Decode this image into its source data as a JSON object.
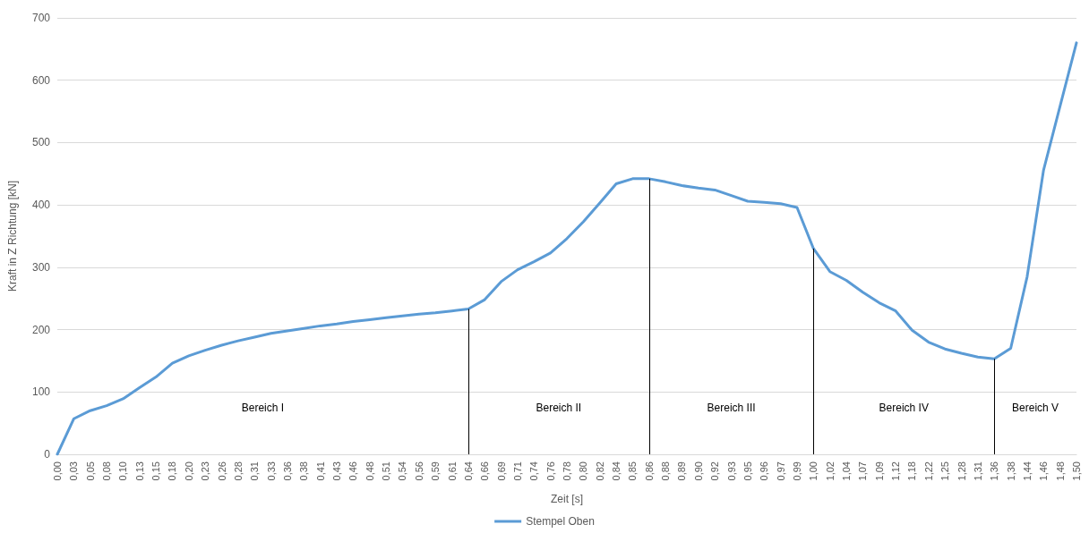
{
  "chart_data": {
    "type": "line",
    "xlabel": "Zeit [s]",
    "ylabel": "Kraft in Z Richtung [kN]",
    "categories": [
      "0,00",
      "0,03",
      "0,05",
      "0,08",
      "0,10",
      "0,13",
      "0,15",
      "0,18",
      "0,20",
      "0,23",
      "0,26",
      "0,28",
      "0,31",
      "0,33",
      "0,36",
      "0,38",
      "0,41",
      "0,43",
      "0,46",
      "0,48",
      "0,51",
      "0,54",
      "0,56",
      "0,59",
      "0,61",
      "0,64",
      "0,66",
      "0,69",
      "0,71",
      "0,74",
      "0,76",
      "0,78",
      "0,80",
      "0,82",
      "0,84",
      "0,85",
      "0,86",
      "0,88",
      "0,89",
      "0,90",
      "0,92",
      "0,93",
      "0,95",
      "0,96",
      "0,97",
      "0,99",
      "1,00",
      "1,02",
      "1,04",
      "1,07",
      "1,09",
      "1,12",
      "1,18",
      "1,22",
      "1,25",
      "1,28",
      "1,31",
      "1,36",
      "1,38",
      "1,44",
      "1,46",
      "1,48",
      "1,50"
    ],
    "series": [
      {
        "name": "Stempel Oben",
        "color": "#5b9bd5",
        "values": [
          0,
          57,
          70,
          78,
          89,
          107,
          124,
          146,
          158,
          167,
          175,
          182,
          188,
          194,
          198,
          202,
          206,
          209,
          213,
          216,
          219,
          222,
          225,
          227,
          230,
          233,
          248,
          277,
          296,
          309,
          323,
          346,
          373,
          403,
          434,
          442,
          442,
          437,
          431,
          427,
          424,
          415,
          406,
          404,
          402,
          396,
          330,
          293,
          279,
          260,
          243,
          230,
          199,
          180,
          169,
          162,
          156,
          153,
          170,
          285,
          456,
          558,
          660
        ]
      }
    ],
    "ylim": [
      0,
      700
    ],
    "yticks": [
      0,
      100,
      200,
      300,
      400,
      500,
      600,
      700
    ],
    "grid": "y",
    "legend": "bottom",
    "marker": "none",
    "ref_lines": [
      {
        "axis": "x",
        "value": "0,64",
        "color": "#000000"
      },
      {
        "axis": "x",
        "value": "0,86",
        "color": "#000000"
      },
      {
        "axis": "x",
        "value": "1,00",
        "color": "#000000"
      },
      {
        "axis": "x",
        "value": "1,36",
        "color": "#000000"
      }
    ],
    "annotations": [
      "Bereich I",
      "Bereich II",
      "Bereich III",
      "Bereich IV",
      "Bereich V"
    ]
  }
}
